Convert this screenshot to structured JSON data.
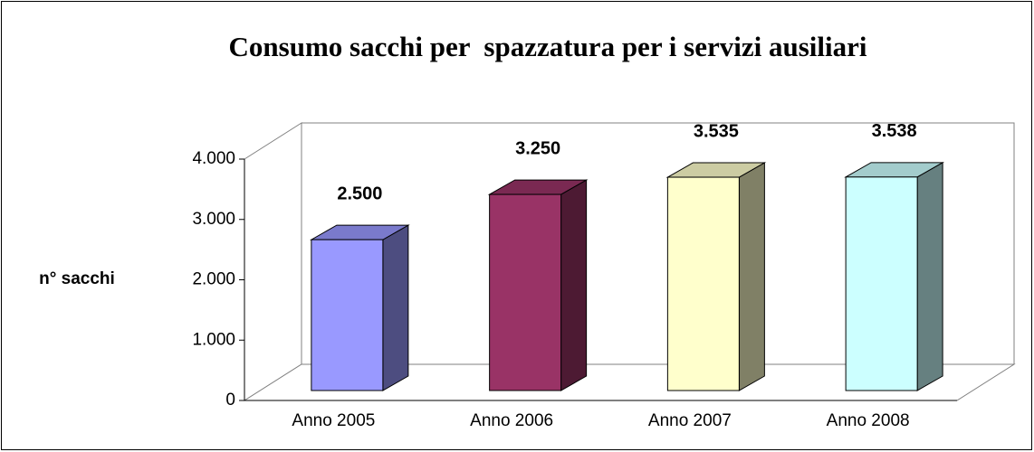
{
  "chart_data": {
    "type": "bar3d",
    "title": "Consumo sacchi per  spazzatura per i servizi ausiliari",
    "y_label": "n° sacchi",
    "categories": [
      "Anno 2005",
      "Anno 2006",
      "Anno 2007",
      "Anno 2008"
    ],
    "values": [
      2500,
      3250,
      3535,
      3538
    ],
    "value_labels": [
      "2.500",
      "3.250",
      "3.535",
      "3.538"
    ],
    "colors": [
      "#9999ff",
      "#993366",
      "#ffffcc",
      "#ccffff"
    ],
    "ylim": [
      0,
      4000
    ],
    "yticks": [
      0,
      {
        "value": 1000,
        "label": "1.000"
      },
      {
        "value": 2000,
        "label": "2.000"
      },
      {
        "value": 3000,
        "label": "3.000"
      },
      {
        "value": 4000,
        "label": "4.000"
      }
    ],
    "grid": false
  }
}
